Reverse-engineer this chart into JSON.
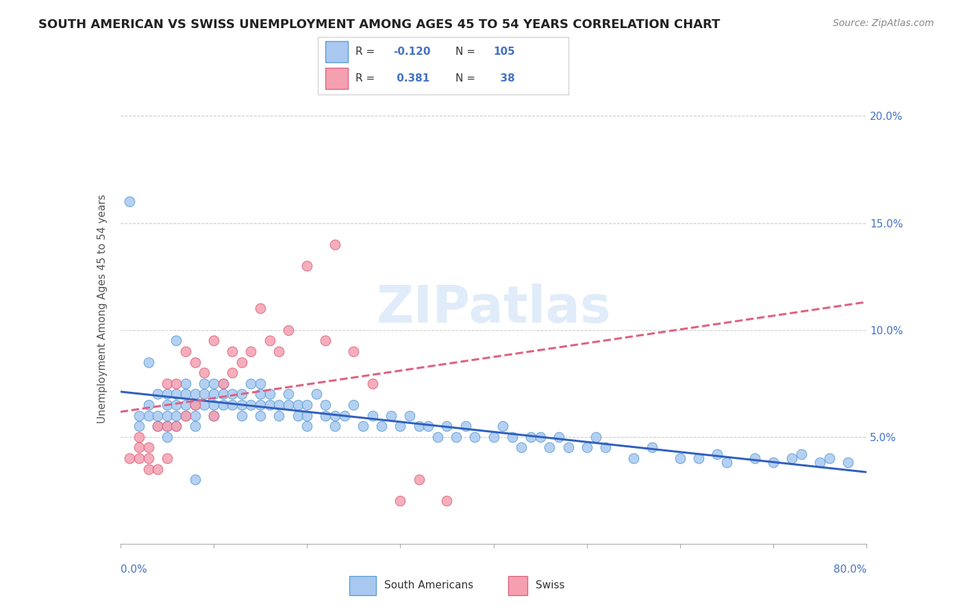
{
  "title": "SOUTH AMERICAN VS SWISS UNEMPLOYMENT AMONG AGES 45 TO 54 YEARS CORRELATION CHART",
  "source": "Source: ZipAtlas.com",
  "ylabel": "Unemployment Among Ages 45 to 54 years",
  "ytick_labels": [
    "5.0%",
    "10.0%",
    "15.0%",
    "20.0%"
  ],
  "ytick_values": [
    0.05,
    0.1,
    0.15,
    0.2
  ],
  "xmin": 0.0,
  "xmax": 0.8,
  "ymin": 0.0,
  "ymax": 0.22,
  "south_american_color": "#a8c8f0",
  "swiss_color": "#f4a0b0",
  "south_american_edge_color": "#5a9fd4",
  "swiss_edge_color": "#e06080",
  "south_american_line_color": "#3060c0",
  "swiss_line_color": "#e06080",
  "tick_label_color": "#4472c4",
  "watermark": "ZIPatlas",
  "sa_R": "-0.120",
  "sa_N": "105",
  "sw_R": "0.381",
  "sw_N": "38",
  "south_american_x": [
    0.02,
    0.03,
    0.03,
    0.04,
    0.04,
    0.04,
    0.05,
    0.05,
    0.05,
    0.05,
    0.05,
    0.06,
    0.06,
    0.06,
    0.06,
    0.07,
    0.07,
    0.07,
    0.07,
    0.08,
    0.08,
    0.08,
    0.08,
    0.09,
    0.09,
    0.09,
    0.1,
    0.1,
    0.1,
    0.1,
    0.11,
    0.11,
    0.11,
    0.12,
    0.12,
    0.13,
    0.13,
    0.13,
    0.14,
    0.14,
    0.15,
    0.15,
    0.15,
    0.15,
    0.16,
    0.16,
    0.17,
    0.17,
    0.18,
    0.18,
    0.19,
    0.19,
    0.2,
    0.2,
    0.2,
    0.21,
    0.22,
    0.22,
    0.23,
    0.23,
    0.24,
    0.25,
    0.26,
    0.27,
    0.28,
    0.29,
    0.3,
    0.31,
    0.32,
    0.33,
    0.34,
    0.35,
    0.36,
    0.37,
    0.38,
    0.4,
    0.41,
    0.42,
    0.43,
    0.44,
    0.45,
    0.46,
    0.47,
    0.48,
    0.5,
    0.51,
    0.52,
    0.55,
    0.57,
    0.6,
    0.62,
    0.64,
    0.65,
    0.68,
    0.7,
    0.72,
    0.73,
    0.75,
    0.76,
    0.78,
    0.01,
    0.02,
    0.03,
    0.06,
    0.08
  ],
  "south_american_y": [
    0.055,
    0.06,
    0.065,
    0.055,
    0.06,
    0.07,
    0.05,
    0.055,
    0.06,
    0.065,
    0.07,
    0.055,
    0.06,
    0.065,
    0.07,
    0.06,
    0.065,
    0.07,
    0.075,
    0.055,
    0.06,
    0.065,
    0.07,
    0.065,
    0.07,
    0.075,
    0.06,
    0.065,
    0.07,
    0.075,
    0.065,
    0.07,
    0.075,
    0.065,
    0.07,
    0.06,
    0.065,
    0.07,
    0.065,
    0.075,
    0.06,
    0.065,
    0.07,
    0.075,
    0.065,
    0.07,
    0.06,
    0.065,
    0.065,
    0.07,
    0.06,
    0.065,
    0.055,
    0.06,
    0.065,
    0.07,
    0.06,
    0.065,
    0.055,
    0.06,
    0.06,
    0.065,
    0.055,
    0.06,
    0.055,
    0.06,
    0.055,
    0.06,
    0.055,
    0.055,
    0.05,
    0.055,
    0.05,
    0.055,
    0.05,
    0.05,
    0.055,
    0.05,
    0.045,
    0.05,
    0.05,
    0.045,
    0.05,
    0.045,
    0.045,
    0.05,
    0.045,
    0.04,
    0.045,
    0.04,
    0.04,
    0.042,
    0.038,
    0.04,
    0.038,
    0.04,
    0.042,
    0.038,
    0.04,
    0.038,
    0.16,
    0.06,
    0.085,
    0.095,
    0.03
  ],
  "swiss_x": [
    0.01,
    0.02,
    0.02,
    0.02,
    0.03,
    0.03,
    0.03,
    0.04,
    0.04,
    0.05,
    0.05,
    0.05,
    0.06,
    0.06,
    0.07,
    0.07,
    0.08,
    0.08,
    0.09,
    0.1,
    0.1,
    0.11,
    0.12,
    0.12,
    0.13,
    0.14,
    0.15,
    0.16,
    0.17,
    0.18,
    0.2,
    0.22,
    0.23,
    0.25,
    0.27,
    0.3,
    0.32,
    0.35
  ],
  "swiss_y": [
    0.04,
    0.04,
    0.045,
    0.05,
    0.035,
    0.04,
    0.045,
    0.035,
    0.055,
    0.04,
    0.055,
    0.075,
    0.055,
    0.075,
    0.06,
    0.09,
    0.065,
    0.085,
    0.08,
    0.06,
    0.095,
    0.075,
    0.08,
    0.09,
    0.085,
    0.09,
    0.11,
    0.095,
    0.09,
    0.1,
    0.13,
    0.095,
    0.14,
    0.09,
    0.075,
    0.02,
    0.03,
    0.02
  ]
}
